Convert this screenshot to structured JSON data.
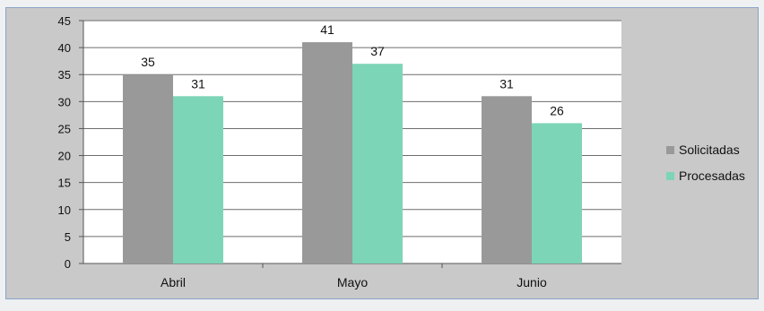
{
  "chart_data": {
    "type": "bar",
    "title": "",
    "xlabel": "",
    "ylabel": "",
    "categories": [
      "Abril",
      "Mayo",
      "Junio"
    ],
    "series": [
      {
        "name": "Solicitadas",
        "values": [
          35,
          41,
          31
        ],
        "color": "#999999"
      },
      {
        "name": "Procesadas",
        "values": [
          31,
          37,
          26
        ],
        "color": "#7dd5b8"
      }
    ],
    "ylim": [
      0,
      45
    ],
    "yticks": [
      0,
      5,
      10,
      15,
      20,
      25,
      30,
      35,
      40,
      45
    ],
    "grid": true,
    "legend_position": "right",
    "plot_background": "#ffffff",
    "chart_background": "#c9c9c9"
  }
}
